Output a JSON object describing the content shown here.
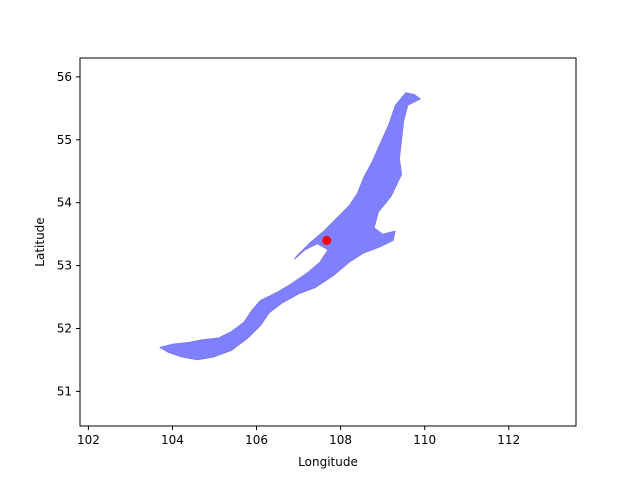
{
  "chart_data": {
    "type": "scatter",
    "title": "",
    "xlabel": "Longitude",
    "ylabel": "Latitude",
    "xlim": [
      101.8,
      113.6
    ],
    "ylim": [
      50.45,
      56.3
    ],
    "xticks": [
      102,
      104,
      106,
      108,
      110,
      112
    ],
    "yticks": [
      51,
      52,
      53,
      54,
      55,
      56
    ],
    "grid": false,
    "lake_color": "#8080ff",
    "lake_edge_color": "#7a7ae0",
    "point_color": "#ff0000",
    "series": [
      {
        "values": [
          [
            107.67,
            53.4
          ]
        ]
      }
    ],
    "lake_outline": [
      [
        103.7,
        51.7
      ],
      [
        104.0,
        51.75
      ],
      [
        104.4,
        51.78
      ],
      [
        104.7,
        51.82
      ],
      [
        105.1,
        51.85
      ],
      [
        105.4,
        51.95
      ],
      [
        105.7,
        52.1
      ],
      [
        105.9,
        52.3
      ],
      [
        106.1,
        52.45
      ],
      [
        106.5,
        52.58
      ],
      [
        106.8,
        52.7
      ],
      [
        107.2,
        52.88
      ],
      [
        107.5,
        53.05
      ],
      [
        107.7,
        53.25
      ],
      [
        107.45,
        53.35
      ],
      [
        107.15,
        53.25
      ],
      [
        106.9,
        53.1
      ],
      [
        106.95,
        53.15
      ],
      [
        107.25,
        53.35
      ],
      [
        107.6,
        53.55
      ],
      [
        107.9,
        53.75
      ],
      [
        108.2,
        53.95
      ],
      [
        108.4,
        54.15
      ],
      [
        108.55,
        54.4
      ],
      [
        108.75,
        54.65
      ],
      [
        108.95,
        54.95
      ],
      [
        109.15,
        55.25
      ],
      [
        109.3,
        55.55
      ],
      [
        109.55,
        55.75
      ],
      [
        109.75,
        55.72
      ],
      [
        109.9,
        55.65
      ],
      [
        109.6,
        55.55
      ],
      [
        109.5,
        55.3
      ],
      [
        109.45,
        55.0
      ],
      [
        109.4,
        54.7
      ],
      [
        109.45,
        54.45
      ],
      [
        109.2,
        54.1
      ],
      [
        108.9,
        53.85
      ],
      [
        108.8,
        53.6
      ],
      [
        109.0,
        53.5
      ],
      [
        109.3,
        53.55
      ],
      [
        109.25,
        53.4
      ],
      [
        108.95,
        53.3
      ],
      [
        108.55,
        53.2
      ],
      [
        108.2,
        53.05
      ],
      [
        107.85,
        52.85
      ],
      [
        107.4,
        52.65
      ],
      [
        107.0,
        52.55
      ],
      [
        106.6,
        52.4
      ],
      [
        106.3,
        52.25
      ],
      [
        106.1,
        52.05
      ],
      [
        105.8,
        51.85
      ],
      [
        105.4,
        51.65
      ],
      [
        105.0,
        51.55
      ],
      [
        104.6,
        51.5
      ],
      [
        104.2,
        51.55
      ],
      [
        103.9,
        51.62
      ]
    ]
  }
}
